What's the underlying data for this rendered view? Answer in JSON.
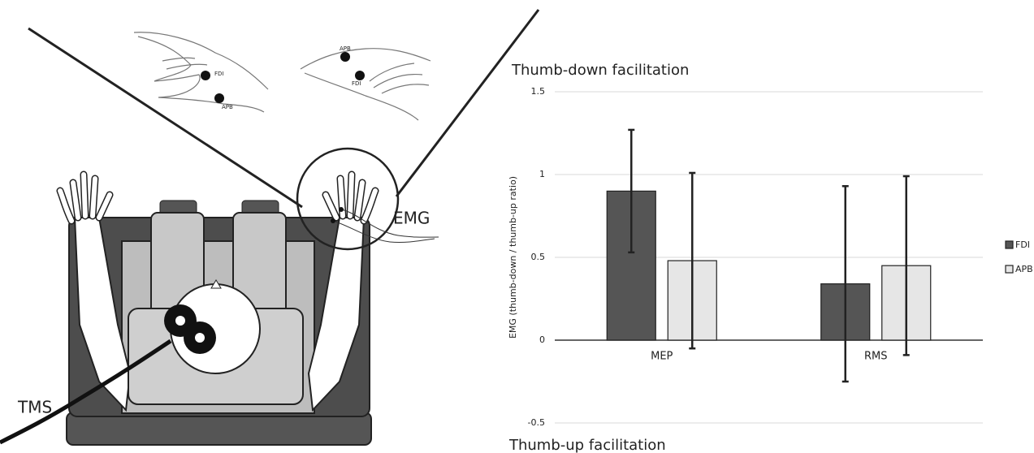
{
  "illustration": {
    "hand_labels": [
      "FDI",
      "APB",
      "APB",
      "FDI"
    ],
    "emg_label": "EMG",
    "tms_label": "TMS"
  },
  "chart_data": {
    "type": "bar",
    "title": "Thumb-down facilitation",
    "bottom_annotation": "Thumb-up facilitation",
    "y_label": "EMG (thumb-down / thumb-up ratio)",
    "categories": [
      "MEP",
      "RMS"
    ],
    "series": [
      {
        "name": "FDI",
        "color": "#555555",
        "values": [
          0.9,
          0.34
        ],
        "errors": [
          0.37,
          0.59
        ]
      },
      {
        "name": "APB",
        "color": "#e6e6e6",
        "values": [
          0.48,
          0.45
        ],
        "errors": [
          0.53,
          0.54
        ]
      }
    ],
    "ylim": [
      -0.5,
      1.5
    ],
    "yticks": [
      -0.5,
      0,
      0.5,
      1,
      1.5
    ],
    "grid": true,
    "legend": "right"
  }
}
